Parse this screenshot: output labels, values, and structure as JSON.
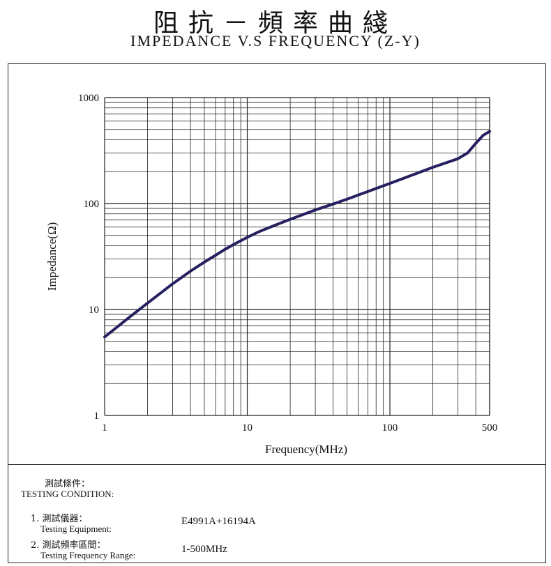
{
  "title_cn": "阻抗－頻率曲綫",
  "title_en": "IMPEDANCE V.S FREQUENCY (Z-Y)",
  "chart_data": {
    "type": "line",
    "scale": {
      "x": "log",
      "y": "log"
    },
    "xlim": [
      1,
      500
    ],
    "ylim": [
      1,
      1000
    ],
    "grid": true,
    "xlabel": "Frequency(MHz)",
    "ylabel": "Impedance(Ω)",
    "x_ticks": [
      "1",
      "10",
      "100",
      "500"
    ],
    "y_ticks": [
      "1",
      "10",
      "100",
      "1000"
    ],
    "line_color": "#25205f",
    "series": [
      {
        "x": [
          1,
          1.5,
          2,
          3,
          4,
          5,
          6,
          7,
          8,
          10,
          12,
          15,
          20,
          30,
          40,
          50,
          70,
          100,
          150,
          200,
          300,
          350,
          400,
          450,
          500
        ],
        "y": [
          5.5,
          8.5,
          11.5,
          17.5,
          23,
          28,
          32.5,
          37,
          41,
          48,
          54,
          61,
          71,
          87,
          99,
          110,
          130,
          155,
          190,
          220,
          265,
          300,
          370,
          440,
          480
        ]
      }
    ]
  },
  "conditions": {
    "heading_cn": "測試條件：",
    "heading_en": "TESTING CONDITION:",
    "items": [
      {
        "label_cn": "1. 測試儀器：",
        "label_en": "Testing Equipment:",
        "value": "E4991A+16194A"
      },
      {
        "label_cn": "2. 測試頻率區間：",
        "label_en": "Testing Frequency Range:",
        "value": "1-500MHz"
      }
    ]
  }
}
